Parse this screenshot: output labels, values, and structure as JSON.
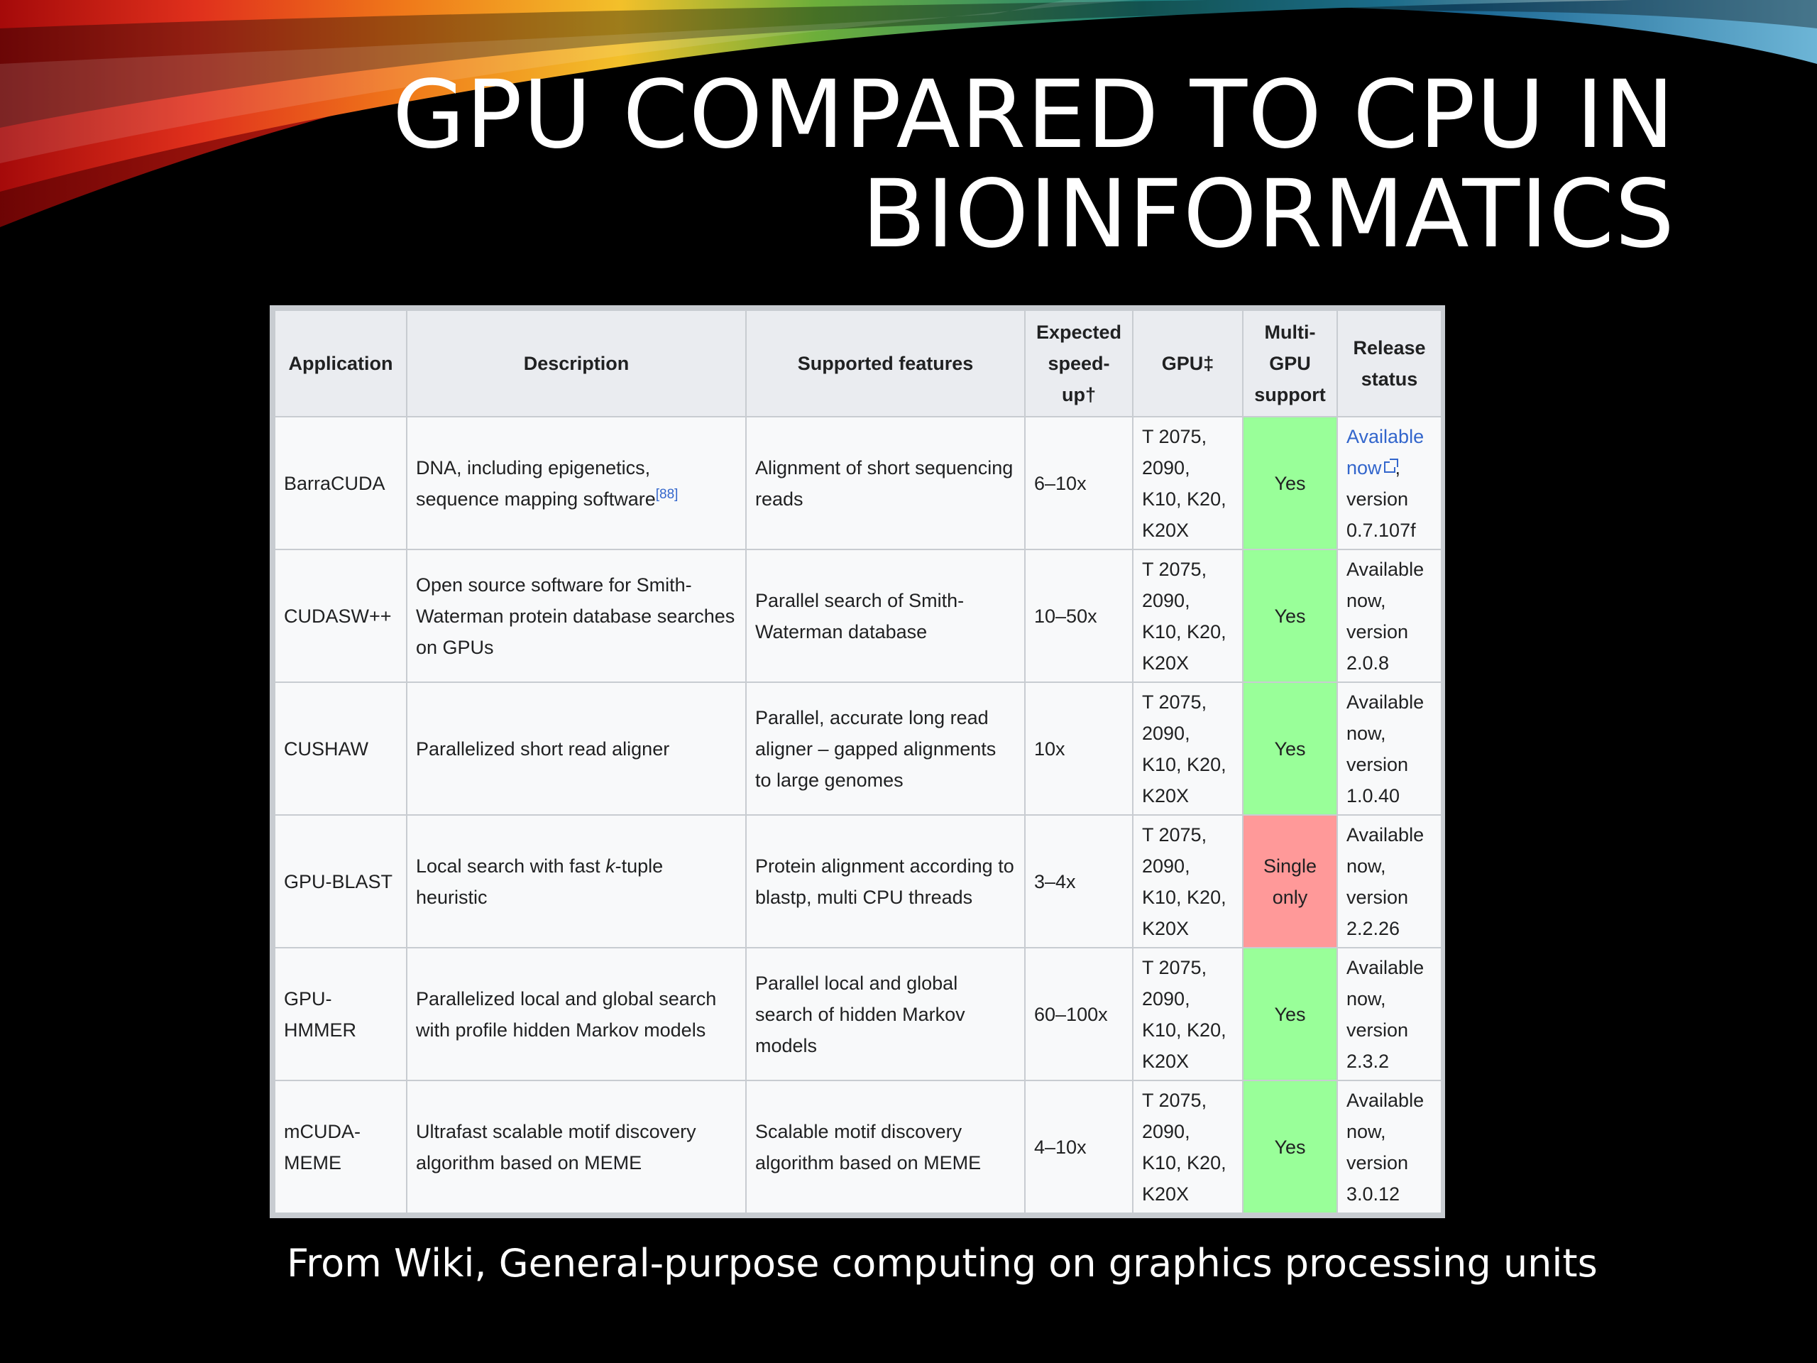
{
  "title": {
    "line1": "GPU compared to CPU in",
    "line2": "Bioinformatics"
  },
  "table": {
    "headers": {
      "application": "Application",
      "description": "Description",
      "features": "Supported features",
      "speedup": "Expected speed-up†",
      "gpu": "GPU‡",
      "multigpu": "Multi-GPU support",
      "release": "Release status"
    },
    "rows": [
      {
        "application": "BarraCUDA",
        "description": "DNA, including epigenetics, sequence mapping software",
        "description_ref": "[88]",
        "features": "Alignment of short sequencing reads",
        "speedup": "6–10x",
        "gpu": "T 2075, 2090, K10, K20, K20X",
        "multigpu": "Yes",
        "release_link": "Available now",
        "release": ", version 0.7.107f"
      },
      {
        "application": "CUDASW++",
        "description": "Open source software for Smith-Waterman protein database searches on GPUs",
        "features": "Parallel search of Smith-Waterman database",
        "speedup": "10–50x",
        "gpu": "T 2075, 2090, K10, K20, K20X",
        "multigpu": "Yes",
        "release": "Available now, version 2.0.8"
      },
      {
        "application": "CUSHAW",
        "description": "Parallelized short read aligner",
        "features": "Parallel, accurate long read aligner – gapped alignments to large genomes",
        "speedup": "10x",
        "gpu": "T 2075, 2090, K10, K20, K20X",
        "multigpu": "Yes",
        "release": "Available now, version 1.0.40"
      },
      {
        "application": "GPU-BLAST",
        "description_pre": "Local search with fast ",
        "description_em": "k",
        "description_post": "-tuple heuristic",
        "features": "Protein alignment according to blastp, multi CPU threads",
        "speedup": "3–4x",
        "gpu": "T 2075, 2090, K10, K20, K20X",
        "multigpu": "Single only",
        "release": "Available now, version 2.2.26"
      },
      {
        "application": "GPU-HMMER",
        "description": "Parallelized local and global search with profile hidden Markov models",
        "features": "Parallel local and global search of hidden Markov models",
        "speedup": "60–100x",
        "gpu": "T 2075, 2090, K10, K20, K20X",
        "multigpu": "Yes",
        "release": "Available now, version 2.3.2"
      },
      {
        "application": "mCUDA-MEME",
        "description": "Ultrafast scalable motif discovery algorithm based on MEME",
        "features": "Scalable motif discovery algorithm based on MEME",
        "speedup": "4–10x",
        "gpu": "T 2075, 2090, K10, K20, K20X",
        "multigpu": "Yes",
        "release": "Available now, version 3.0.12"
      }
    ]
  },
  "caption": "From Wiki, General-purpose computing on graphics processing units",
  "colors": {
    "background": "#000000",
    "yes_cell": "#99ff99",
    "no_cell": "#ff9999",
    "link": "#3366cc"
  }
}
